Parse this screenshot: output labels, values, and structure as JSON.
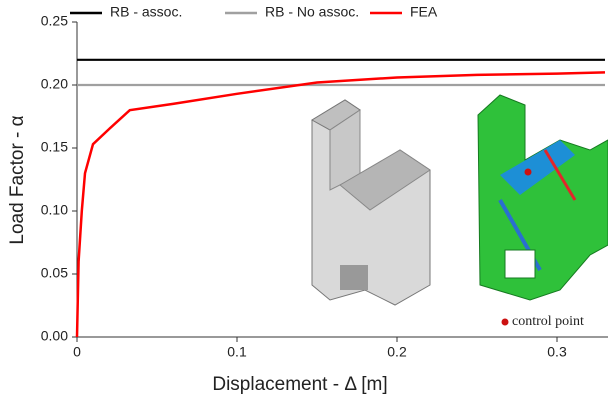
{
  "chart_data": {
    "type": "line",
    "legend": "top",
    "xlabel": "Displacement - Δ [m]",
    "ylabel": "Load Factor - α",
    "xlim": [
      0,
      0.33
    ],
    "ylim": [
      0,
      0.25
    ],
    "xticks": [
      0,
      0.1,
      0.2,
      0.3
    ],
    "yticks": [
      {
        "value": 0,
        "label": "0.00"
      },
      {
        "value": 0.05,
        "label": "0.05"
      },
      {
        "value": 0.1,
        "label": "0.10"
      },
      {
        "value": 0.15,
        "label": "0.15"
      },
      {
        "value": 0.2,
        "label": "0.20"
      },
      {
        "value": 0.25,
        "label": "0.25"
      }
    ],
    "series": [
      {
        "name": "RB - assoc.",
        "color": "#000000",
        "x": [
          0,
          0.33
        ],
        "values": [
          0.22,
          0.22
        ]
      },
      {
        "name": "RB - No assoc.",
        "color": "#a0a0a0",
        "x": [
          0,
          0.33
        ],
        "values": [
          0.2,
          0.2
        ]
      },
      {
        "name": "FEA",
        "color": "#ff0000",
        "x": [
          0,
          0.001,
          0.003,
          0.005,
          0.01,
          0.02,
          0.033,
          0.06,
          0.1,
          0.15,
          0.2,
          0.25,
          0.3,
          0.33
        ],
        "values": [
          0,
          0.06,
          0.1,
          0.13,
          0.153,
          0.165,
          0.18,
          0.185,
          0.193,
          0.202,
          0.206,
          0.208,
          0.209,
          0.21
        ]
      }
    ],
    "annotation": "control point"
  }
}
